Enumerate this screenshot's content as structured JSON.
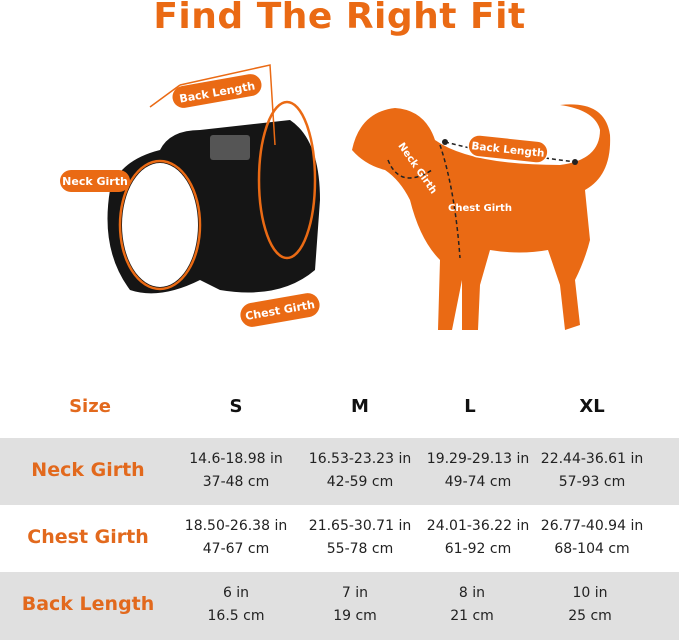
{
  "title": "Find The Right Fit",
  "colors": {
    "accent": "#ea6a14",
    "row_gray": "#e0e0e0",
    "harness": "#111111"
  },
  "harness_callouts": {
    "back_length": "Back Length",
    "neck_girth": "Neck Girth",
    "chest_girth": "Chest Girth"
  },
  "dog_callouts": {
    "neck_girth": "Neck Girth",
    "chest_girth": "Chest Girth",
    "back_length": "Back Length"
  },
  "table": {
    "header": {
      "label": "Size",
      "sizes": [
        "S",
        "M",
        "L",
        "XL"
      ]
    },
    "rows": [
      {
        "label": "Neck Girth",
        "values": [
          [
            "14.6-18.98 in",
            "37-48 cm"
          ],
          [
            "16.53-23.23 in",
            "42-59 cm"
          ],
          [
            "19.29-29.13 in",
            "49-74 cm"
          ],
          [
            "22.44-36.61 in",
            "57-93 cm"
          ]
        ]
      },
      {
        "label": "Chest Girth",
        "values": [
          [
            "18.50-26.38 in",
            "47-67 cm"
          ],
          [
            "21.65-30.71 in",
            "55-78 cm"
          ],
          [
            "24.01-36.22 in",
            "61-92 cm"
          ],
          [
            "26.77-40.94 in",
            "68-104 cm"
          ]
        ]
      },
      {
        "label": "Back Length",
        "values": [
          [
            "6 in",
            "16.5 cm"
          ],
          [
            "7 in",
            "19 cm"
          ],
          [
            "8 in",
            "21 cm"
          ],
          [
            "10 in",
            "25 cm"
          ]
        ]
      }
    ]
  }
}
